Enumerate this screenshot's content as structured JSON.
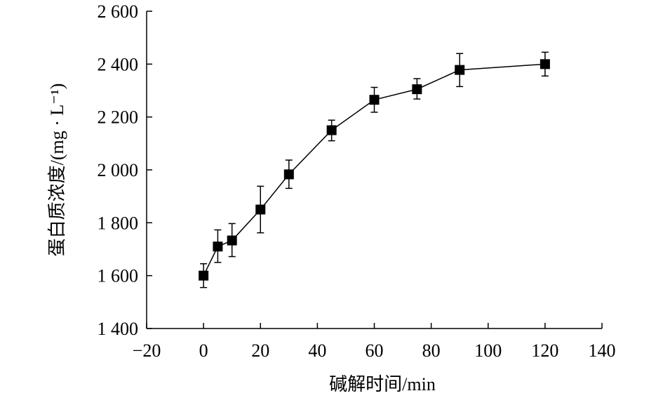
{
  "chart_data": {
    "type": "scatter",
    "title": "",
    "xlabel": "碱解时间/min",
    "ylabel": "蛋白质浓度/(mg · L⁻¹)",
    "xlim": [
      -20,
      140
    ],
    "ylim": [
      1400,
      2600
    ],
    "x_ticks": [
      -20,
      0,
      20,
      40,
      60,
      80,
      100,
      120,
      140
    ],
    "x_tick_labels": [
      "−20",
      "0",
      "20",
      "40",
      "60",
      "80",
      "100",
      "120",
      "140"
    ],
    "y_ticks": [
      1400,
      1600,
      1800,
      2000,
      2200,
      2400,
      2600
    ],
    "y_tick_labels": [
      "1 400",
      "1 600",
      "1 800",
      "2 000",
      "2 200",
      "2 400",
      "2 600"
    ],
    "marker": "square",
    "line": true,
    "error_bars": true,
    "grid": false,
    "legend": "none",
    "series": [
      {
        "color": "#000000",
        "points": [
          {
            "x": 0,
            "y": 1600,
            "yerr_low": 1555,
            "yerr_high": 1645
          },
          {
            "x": 5,
            "y": 1710,
            "yerr_low": 1650,
            "yerr_high": 1773
          },
          {
            "x": 10,
            "y": 1733,
            "yerr_low": 1672,
            "yerr_high": 1797
          },
          {
            "x": 20,
            "y": 1850,
            "yerr_low": 1762,
            "yerr_high": 1938
          },
          {
            "x": 30,
            "y": 1983,
            "yerr_low": 1930,
            "yerr_high": 2037
          },
          {
            "x": 45,
            "y": 2150,
            "yerr_low": 2110,
            "yerr_high": 2188
          },
          {
            "x": 60,
            "y": 2265,
            "yerr_low": 2218,
            "yerr_high": 2312
          },
          {
            "x": 75,
            "y": 2305,
            "yerr_low": 2268,
            "yerr_high": 2345
          },
          {
            "x": 90,
            "y": 2378,
            "yerr_low": 2315,
            "yerr_high": 2440
          },
          {
            "x": 120,
            "y": 2400,
            "yerr_low": 2355,
            "yerr_high": 2445
          }
        ]
      }
    ]
  }
}
